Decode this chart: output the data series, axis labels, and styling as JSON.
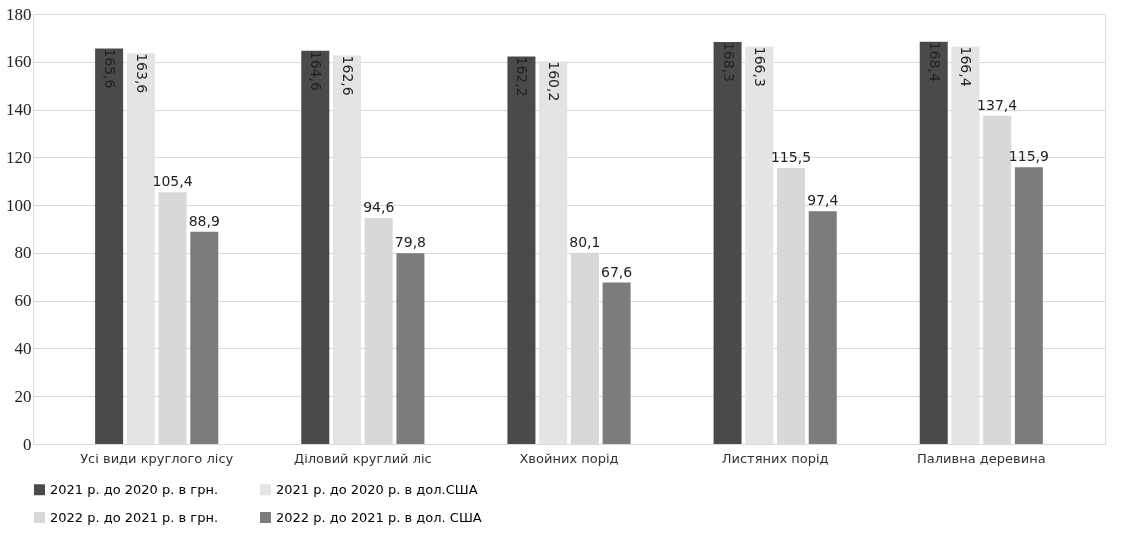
{
  "chart_data": {
    "type": "bar",
    "categories": [
      "Усі види круглого лісу",
      "Діловий круглий ліс",
      "Хвойних порід",
      "Листяних порід",
      "Паливна деревина"
    ],
    "series": [
      {
        "name": "2021 р. до 2020 р. в грн.",
        "color": "#4a4a4a",
        "values": [
          165.6,
          164.6,
          162.2,
          168.3,
          168.4
        ],
        "value_labels": [
          "165,6",
          "164,6",
          "162,2",
          "168,3",
          "168,4"
        ]
      },
      {
        "name": "2021 р. до 2020 р. в дол.США",
        "color": "#e4e4e4",
        "values": [
          163.6,
          162.6,
          160.2,
          166.3,
          166.4
        ],
        "value_labels": [
          "163,6",
          "162,6",
          "160,2",
          "166,3",
          "166,4"
        ]
      },
      {
        "name": "2022 р. до 2021 р. в грн.",
        "color": "#d8d8d8",
        "values": [
          105.4,
          94.6,
          80.1,
          115.5,
          137.4
        ],
        "value_labels": [
          "105,4",
          "94,6",
          "80,1",
          "115,5",
          "137,4"
        ]
      },
      {
        "name": "2022 р. до 2021 р. в дол. США",
        "color": "#7c7c7c",
        "values": [
          88.9,
          79.8,
          67.6,
          97.4,
          115.9
        ],
        "value_labels": [
          "88,9",
          "79,8",
          "67,6",
          "97,4",
          "115,9"
        ]
      }
    ],
    "ylim": [
      0,
      180
    ],
    "yticks": [
      0,
      20,
      40,
      60,
      80,
      100,
      120,
      140,
      160,
      180
    ],
    "grid": "y",
    "legend": "bottom"
  }
}
